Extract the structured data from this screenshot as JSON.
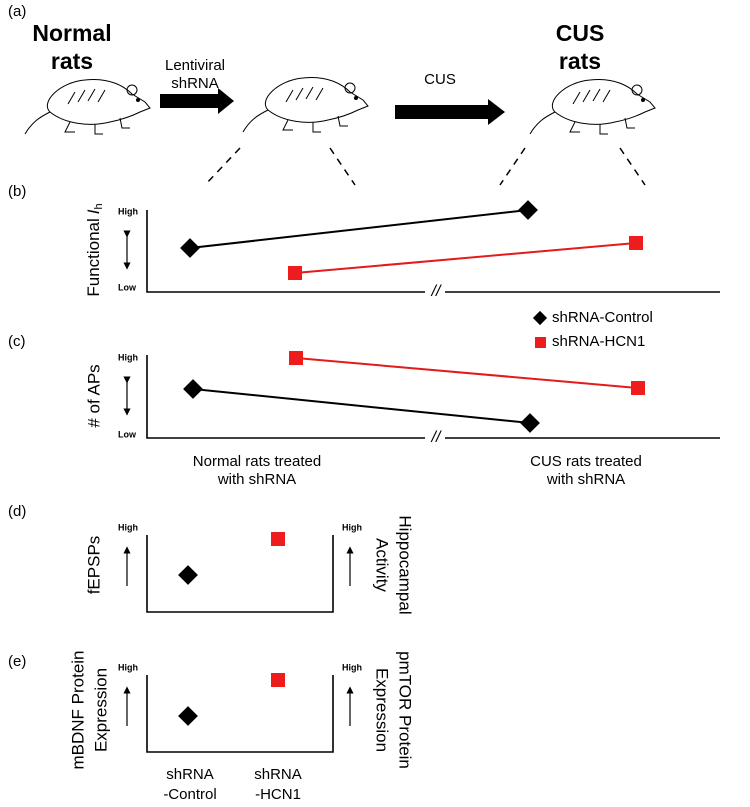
{
  "panel_a": {
    "label": "(a)",
    "normal": [
      "Normal",
      "rats"
    ],
    "arrow1": [
      "Lentiviral",
      "shRNA"
    ],
    "arrow2": "CUS",
    "cus": [
      "CUS",
      "rats"
    ]
  },
  "panel_b": {
    "label": "(b)",
    "ylabel": "Functional",
    "ylabel_italic": "I",
    "ylabel_sub": "h",
    "high": "High",
    "low": "Low"
  },
  "legend": [
    "shRNA-Control",
    "shRNA-HCN1"
  ],
  "panel_c": {
    "label": "(c)",
    "ylabel": "# of APs",
    "high": "High",
    "low": "Low",
    "x_left": [
      "Normal rats treated",
      "with shRNA"
    ],
    "x_right": [
      "CUS rats treated",
      "with shRNA"
    ]
  },
  "panel_d": {
    "label": "(d)",
    "ylabel": "fEPSPs",
    "high": "High",
    "y2label": [
      "Hippocampal",
      "Activity"
    ],
    "y2high": "High"
  },
  "panel_e": {
    "label": "(e)",
    "ylabel": [
      "mBDNF Protein",
      "Expression"
    ],
    "high": "High",
    "y2label": [
      "pmTOR Protein",
      "Expression"
    ],
    "y2high": "High",
    "categories": [
      [
        "shRNA",
        "-Control"
      ],
      [
        "shRNA",
        "-HCN1"
      ]
    ]
  }
}
